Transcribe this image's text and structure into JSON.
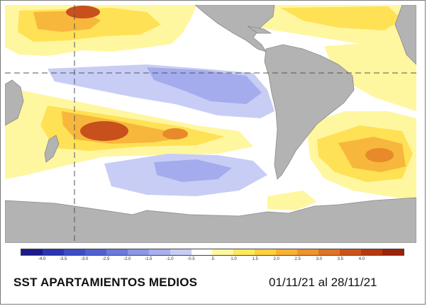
{
  "caption": {
    "title": "SST APARTAMIENTOS MEDIOS",
    "period": "01/11/21 al 28/11/21"
  },
  "legend": {
    "swatch_colors": [
      "#1a1a8c",
      "#2a34b4",
      "#3a4ec8",
      "#5060d4",
      "#6a7ade",
      "#8a96e6",
      "#a8b0ee",
      "#c8cdf5",
      "#ffffff",
      "#fff6a0",
      "#ffe860",
      "#ffd040",
      "#f7b236",
      "#ef942e",
      "#e07424",
      "#cc5418",
      "#b8380e",
      "#9c2208"
    ],
    "tick_labels": [
      "-4.0",
      "-3.5",
      "-3.0",
      "-2.5",
      "-2.0",
      "-1.5",
      "-1.0",
      "-0.5",
      ".5",
      "1.0",
      "1.5",
      "2.0",
      "2.5",
      "3.0",
      "3.5",
      "4.0"
    ]
  },
  "map_colors": {
    "land": "#b3b3b3",
    "coast": "#8a8a8a",
    "ocean": "#ffffff",
    "weak_cold": "#c8cdf5",
    "cold": "#a4acee",
    "warm_1": "#fff6a0",
    "warm_2": "#ffe155",
    "warm_3": "#f7b73c",
    "warm_4": "#e88a2c",
    "warm_5": "#c8501c",
    "warm_6": "#a8260c",
    "guide_line": "#555555"
  }
}
